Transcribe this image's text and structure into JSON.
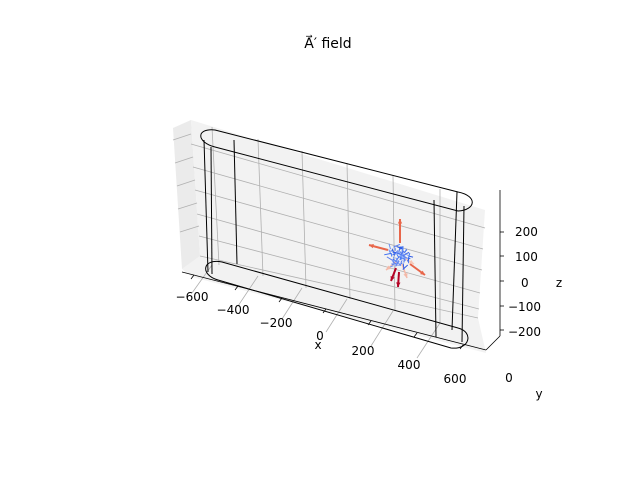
{
  "chart_data": {
    "type": "quiver3d",
    "title": "A⃗′ field",
    "xlabel": "x",
    "ylabel": "y",
    "zlabel": "z",
    "x_ticks": [
      "−600",
      "−400",
      "−200",
      "0",
      "200",
      "400",
      "600"
    ],
    "y_ticks": [
      "0"
    ],
    "z_ticks": [
      "200",
      "100",
      "0",
      "−100",
      "−200"
    ],
    "xlim": [
      -650,
      650
    ],
    "zlim": [
      -280,
      280
    ],
    "grid": true,
    "colormap": "coolwarm",
    "colors": {
      "pane": "#f2f2f2",
      "grid": "#b0b0b0",
      "outline": "#000000",
      "cool": "#3b6cf0",
      "warm": "#e8664a",
      "hot": "#b40426",
      "pale_warm": "#f4b9a8"
    },
    "outline_shape": "stadium prism"
  }
}
